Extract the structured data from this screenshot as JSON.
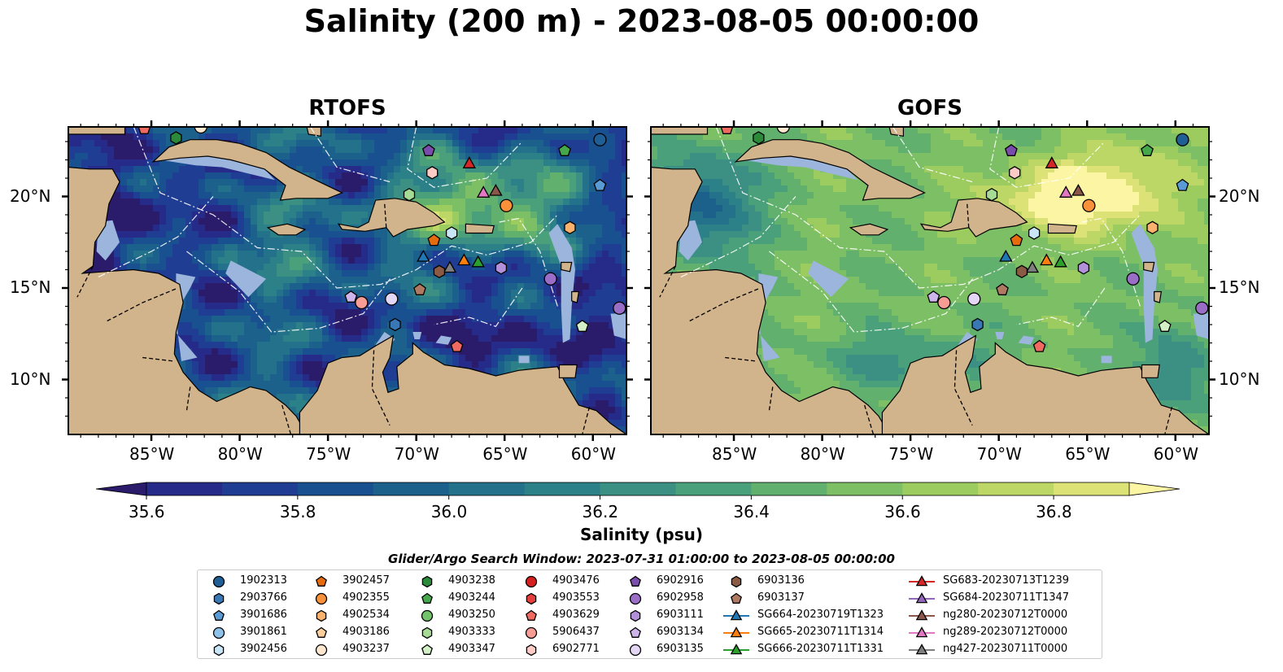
{
  "title": "Salinity (200 m) - 2023-08-05 00:00:00",
  "panels": [
    {
      "title": "RTOFS",
      "model": "rtofs"
    },
    {
      "title": "GOFS",
      "model": "gofs"
    }
  ],
  "map_extent": {
    "lon_min": -89.7,
    "lon_max": -58.1,
    "lat_min": 7.0,
    "lat_max": 23.8
  },
  "x_ticks": [
    "85°W",
    "80°W",
    "75°W",
    "70°W",
    "65°W",
    "60°W"
  ],
  "x_tick_values": [
    -85,
    -80,
    -75,
    -70,
    -65,
    -60
  ],
  "y_ticks": [
    "20°N",
    "15°N",
    "10°N"
  ],
  "y_tick_values": [
    20,
    15,
    10
  ],
  "colorbar": {
    "label": "Salinity (psu)",
    "ticks": [
      "35.6",
      "35.8",
      "36.0",
      "36.2",
      "36.4",
      "36.6",
      "36.8"
    ],
    "tick_values": [
      35.6,
      35.8,
      36.0,
      36.2,
      36.4,
      36.6,
      36.8
    ],
    "min": 35.55,
    "max": 36.95,
    "colors": [
      "#2b1b6b",
      "#262a88",
      "#1f3d93",
      "#19508f",
      "#1c618c",
      "#23718a",
      "#2c8087",
      "#3b9083",
      "#4aa07a",
      "#61b06e",
      "#7dbf64",
      "#9ccb5f",
      "#bcd766",
      "#dde277",
      "#fbf5a4"
    ]
  },
  "legend": {
    "title": "Glider/Argo Search Window: 2023-07-31 01:00:00 to 2023-08-05 00:00:00",
    "columns": [
      [
        {
          "label": "1902313",
          "marker": "circle",
          "color": "#1f5f96"
        },
        {
          "label": "2903766",
          "marker": "hexagon",
          "color": "#3a78b5"
        },
        {
          "label": "3901686",
          "marker": "pentagon",
          "color": "#5b9bd5"
        },
        {
          "label": "3901861",
          "marker": "circle",
          "color": "#8fc2e8"
        },
        {
          "label": "3902456",
          "marker": "hexagon",
          "color": "#c9e6f7"
        }
      ],
      [
        {
          "label": "3902457",
          "marker": "pentagon",
          "color": "#e66a0e"
        },
        {
          "label": "4902355",
          "marker": "circle",
          "color": "#f9913b"
        },
        {
          "label": "4902534",
          "marker": "hexagon",
          "color": "#fcb26c"
        },
        {
          "label": "4903186",
          "marker": "pentagon",
          "color": "#fdcf9c"
        },
        {
          "label": "4903237",
          "marker": "circle",
          "color": "#fde8cf"
        }
      ],
      [
        {
          "label": "4903238",
          "marker": "hexagon",
          "color": "#2a8a3a"
        },
        {
          "label": "4903244",
          "marker": "pentagon",
          "color": "#45a84b"
        },
        {
          "label": "4903250",
          "marker": "circle",
          "color": "#72c36a"
        },
        {
          "label": "4903333",
          "marker": "hexagon",
          "color": "#a5db94"
        },
        {
          "label": "4903347",
          "marker": "pentagon",
          "color": "#d3efc6"
        }
      ],
      [
        {
          "label": "4903476",
          "marker": "circle",
          "color": "#d62020"
        },
        {
          "label": "4903553",
          "marker": "hexagon",
          "color": "#e43f3a"
        },
        {
          "label": "4903629",
          "marker": "pentagon",
          "color": "#f06a62"
        },
        {
          "label": "5906437",
          "marker": "circle",
          "color": "#f79d96"
        },
        {
          "label": "6902771",
          "marker": "hexagon",
          "color": "#fccbc6"
        }
      ],
      [
        {
          "label": "6902916",
          "marker": "pentagon",
          "color": "#7a4cab"
        },
        {
          "label": "6902958",
          "marker": "circle",
          "color": "#9a6ec6"
        },
        {
          "label": "6903111",
          "marker": "hexagon",
          "color": "#b391da"
        },
        {
          "label": "6903134",
          "marker": "pentagon",
          "color": "#cdb4ea"
        },
        {
          "label": "6903135",
          "marker": "circle",
          "color": "#e4d6f5"
        }
      ],
      [
        {
          "label": "6903136",
          "marker": "hexagon",
          "color": "#8a5a44"
        },
        {
          "label": "6903137",
          "marker": "pentagon",
          "color": "#b07a62"
        },
        {
          "label": "SG664-20230719T1323",
          "marker": "triangle-line",
          "color": "#1f77b4"
        },
        {
          "label": "SG665-20230711T1314",
          "marker": "triangle-line",
          "color": "#ff7f0e"
        },
        {
          "label": "SG666-20230711T1331",
          "marker": "triangle-line",
          "color": "#2ca02c"
        }
      ],
      [
        {
          "label": "SG683-20230713T1239",
          "marker": "triangle-line",
          "color": "#d62728"
        },
        {
          "label": "SG684-20230711T1347",
          "marker": "triangle-line",
          "color": "#9467bd"
        },
        {
          "label": "ng280-20230712T0000",
          "marker": "triangle-line",
          "color": "#8c564b"
        },
        {
          "label": "ng289-20230712T0000",
          "marker": "triangle-line",
          "color": "#e377c2"
        },
        {
          "label": "ng427-20230711T0000",
          "marker": "triangle-line",
          "color": "#7f7f7f"
        }
      ]
    ]
  },
  "observations": [
    {
      "id": "1902313",
      "lon": -59.6,
      "lat": 23.1
    },
    {
      "id": "3901686",
      "lon": -59.6,
      "lat": 20.6
    },
    {
      "id": "4903244",
      "lon": -61.6,
      "lat": 22.5
    },
    {
      "id": "6902916",
      "lon": -69.3,
      "lat": 22.5
    },
    {
      "id": "SG683-20230713T1239",
      "lon": -67.0,
      "lat": 21.8
    },
    {
      "id": "6902771",
      "lon": -69.1,
      "lat": 21.3
    },
    {
      "id": "ng289-20230712T0000",
      "lon": -66.2,
      "lat": 20.2
    },
    {
      "id": "ng280-20230712T0000",
      "lon": -65.5,
      "lat": 20.3
    },
    {
      "id": "4903333",
      "lon": -70.4,
      "lat": 20.1
    },
    {
      "id": "4902355",
      "lon": -64.9,
      "lat": 19.5
    },
    {
      "id": "4902534",
      "lon": -61.3,
      "lat": 18.3
    },
    {
      "id": "3902457",
      "lon": -69.0,
      "lat": 17.6
    },
    {
      "id": "3902456",
      "lon": -68.0,
      "lat": 18.0
    },
    {
      "id": "SG664-20230719T1323",
      "lon": -69.6,
      "lat": 16.7
    },
    {
      "id": "SG665-20230711T1314",
      "lon": -67.3,
      "lat": 16.5
    },
    {
      "id": "SG666-20230711T1331",
      "lon": -66.5,
      "lat": 16.4
    },
    {
      "id": "ng427-20230711T0000",
      "lon": -68.1,
      "lat": 16.1
    },
    {
      "id": "6903136",
      "lon": -68.7,
      "lat": 15.9
    },
    {
      "id": "6903111",
      "lon": -65.2,
      "lat": 16.1
    },
    {
      "id": "6902958",
      "lon": -62.4,
      "lat": 15.5
    },
    {
      "id": "6903137",
      "lon": -69.8,
      "lat": 14.9
    },
    {
      "id": "6903134",
      "lon": -73.7,
      "lat": 14.5
    },
    {
      "id": "5906437",
      "lon": -73.1,
      "lat": 14.2
    },
    {
      "id": "6903135",
      "lon": -71.4,
      "lat": 14.4
    },
    {
      "id": "2903766",
      "lon": -71.2,
      "lat": 13.0
    },
    {
      "id": "4903347",
      "lon": -60.6,
      "lat": 12.9
    },
    {
      "id": "4903629",
      "lon": -67.7,
      "lat": 11.8
    },
    {
      "id": "6902958",
      "lon": -58.5,
      "lat": 13.9
    },
    {
      "id": "4903238",
      "lon": -83.6,
      "lat": 23.2
    },
    {
      "id": "4903629",
      "lon": -85.4,
      "lat": 23.7
    },
    {
      "id": "4903237",
      "lon": -82.2,
      "lat": 23.8
    }
  ]
}
